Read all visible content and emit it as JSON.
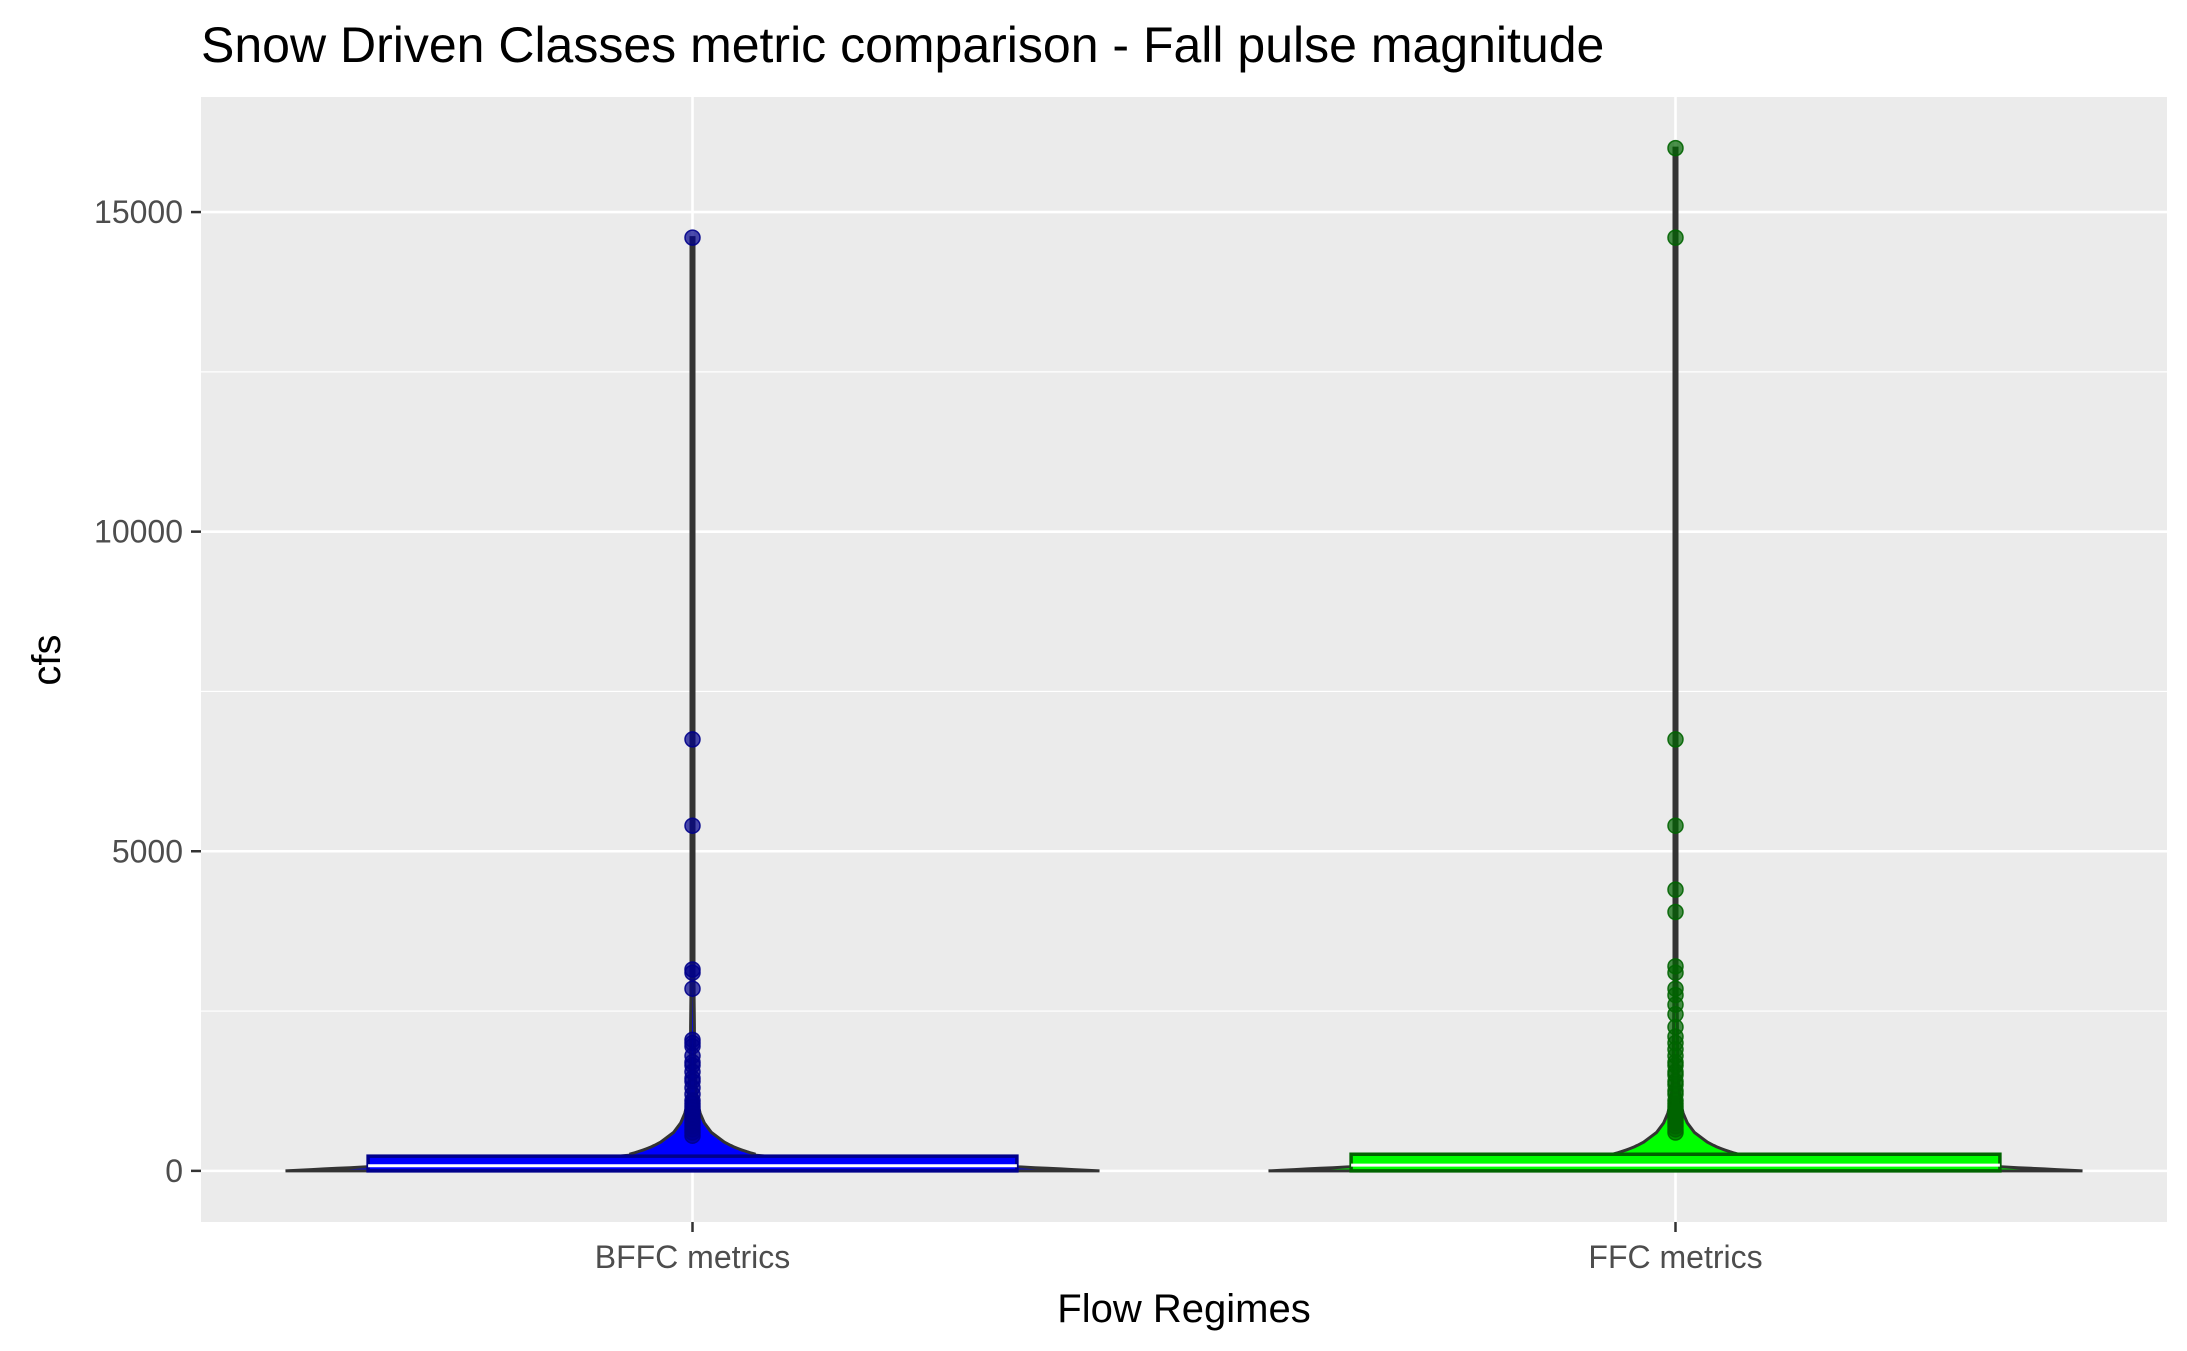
{
  "chart_data": {
    "type": "violin",
    "title": "Snow Driven Classes metric comparison - Fall pulse magnitude",
    "xlabel": "Flow Regimes",
    "ylabel": "cfs",
    "categories": [
      "BFFC metrics",
      "FFC metrics"
    ],
    "ylim": [
      -800,
      16800
    ],
    "yticks": [
      0,
      5000,
      10000,
      15000
    ],
    "ytick_labels": [
      "0",
      "5000",
      "10000",
      "15000"
    ],
    "grid": true,
    "legend": "none",
    "background_color": "#ebebeb",
    "gridline_color": "#ffffff",
    "series": [
      {
        "category": "BFFC metrics",
        "fill_color": "#0000ff",
        "box_border_color": "#00008b",
        "point_color": "#00008b",
        "violin_max": 14600,
        "box": {
          "q1": 0,
          "median": 80,
          "q3": 230
        },
        "points": [
          14600,
          6750,
          5400,
          3150,
          3100,
          2850,
          2050,
          2000,
          1950,
          1800,
          1700,
          1650,
          1550,
          1450,
          1400,
          1300,
          1200,
          1100,
          1050,
          1000,
          950,
          900,
          850,
          800,
          750,
          700,
          650,
          600,
          550
        ]
      },
      {
        "category": "FFC metrics",
        "fill_color": "#00ff00",
        "box_border_color": "#006400",
        "point_color": "#006400",
        "violin_max": 16000,
        "box": {
          "q1": 0,
          "median": 90,
          "q3": 260
        },
        "points": [
          16000,
          14600,
          6750,
          5400,
          4400,
          4050,
          3200,
          3100,
          2850,
          2750,
          2600,
          2450,
          2250,
          2100,
          2000,
          1900,
          1800,
          1700,
          1650,
          1550,
          1500,
          1400,
          1350,
          1250,
          1200,
          1100,
          1050,
          1000,
          950,
          900,
          850,
          800,
          750,
          700,
          650,
          600
        ]
      }
    ]
  }
}
